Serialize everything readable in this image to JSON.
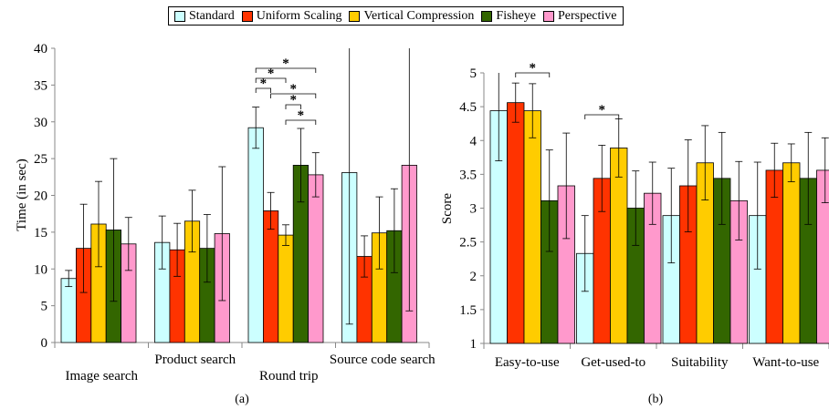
{
  "legend": {
    "series": [
      {
        "name": "Standard",
        "color": "#ccffff"
      },
      {
        "name": "Uniform Scaling",
        "color": "#ff3300"
      },
      {
        "name": "Vertical Compression",
        "color": "#ffcc00"
      },
      {
        "name": "Fisheye",
        "color": "#336600"
      },
      {
        "name": "Perspective",
        "color": "#ff99cc"
      }
    ]
  },
  "chart_data": [
    {
      "type": "bar",
      "panel_label": "(a)",
      "ylabel": "Time (in sec)",
      "ylim": [
        0,
        40
      ],
      "yticks": [
        "0",
        "5",
        "10",
        "15",
        "20",
        "25",
        "30",
        "35",
        "40"
      ],
      "categories": [
        "Image search",
        "Product search",
        "Round trip",
        "Source code search"
      ],
      "series": [
        {
          "name": "Standard",
          "values": [
            8.7,
            13.6,
            29.2,
            23.1
          ],
          "err": [
            1.1,
            3.6,
            2.8,
            20.6
          ]
        },
        {
          "name": "Uniform Scaling",
          "values": [
            12.8,
            12.6,
            17.9,
            11.7
          ],
          "err": [
            6.0,
            3.6,
            2.5,
            2.8
          ]
        },
        {
          "name": "Vertical Compression",
          "values": [
            16.1,
            16.5,
            14.6,
            14.9
          ],
          "err": [
            5.8,
            4.2,
            1.4,
            4.9
          ]
        },
        {
          "name": "Fisheye",
          "values": [
            15.3,
            12.8,
            24.1,
            15.2
          ],
          "err": [
            9.7,
            4.6,
            5.0,
            5.7
          ]
        },
        {
          "name": "Perspective",
          "values": [
            13.4,
            14.8,
            22.8,
            24.1
          ],
          "err": [
            3.6,
            9.1,
            3.0,
            19.8
          ]
        }
      ],
      "significance": [
        {
          "category": 2,
          "from": 0,
          "to": 4,
          "label": "*"
        },
        {
          "category": 2,
          "from": 0,
          "to": 2,
          "label": "*"
        },
        {
          "category": 2,
          "from": 0,
          "to": 1,
          "label": "*"
        },
        {
          "category": 2,
          "from": 1,
          "to": 4,
          "label": "*"
        },
        {
          "category": 2,
          "from": 2,
          "to": 3,
          "label": "*"
        },
        {
          "category": 2,
          "from": 2,
          "to": 4,
          "label": "*"
        }
      ]
    },
    {
      "type": "bar",
      "panel_label": "(b)",
      "ylabel": "Score",
      "ylim": [
        1,
        5
      ],
      "yticks": [
        "1",
        "1.5",
        "2",
        "2.5",
        "3",
        "3.5",
        "4",
        "4.5",
        "5"
      ],
      "categories": [
        "Easy-to-use",
        "Get-used-to",
        "Suitability",
        "Want-to-use"
      ],
      "series": [
        {
          "name": "Standard",
          "values": [
            4.44,
            2.33,
            2.89,
            2.89
          ],
          "err": [
            0.74,
            0.56,
            0.7,
            0.79
          ]
        },
        {
          "name": "Uniform Scaling",
          "values": [
            4.56,
            3.44,
            3.33,
            3.56
          ],
          "err": [
            0.29,
            0.49,
            0.68,
            0.4
          ]
        },
        {
          "name": "Vertical Compression",
          "values": [
            4.44,
            3.89,
            3.67,
            3.67
          ],
          "err": [
            0.4,
            0.43,
            0.55,
            0.28
          ]
        },
        {
          "name": "Fisheye",
          "values": [
            3.11,
            3.0,
            3.44,
            3.44
          ],
          "err": [
            0.75,
            0.55,
            0.68,
            0.68
          ]
        },
        {
          "name": "Perspective",
          "values": [
            3.33,
            3.22,
            3.11,
            3.56
          ],
          "err": [
            0.78,
            0.46,
            0.58,
            0.48
          ]
        }
      ],
      "significance": [
        {
          "category": 0,
          "from": 1,
          "to": 3,
          "label": "*"
        },
        {
          "category": 1,
          "from": 0,
          "to": 2,
          "label": "*"
        }
      ]
    }
  ]
}
